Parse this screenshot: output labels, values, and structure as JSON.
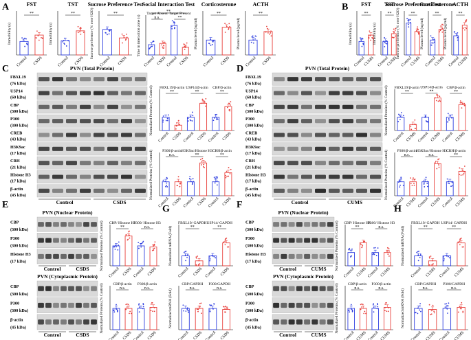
{
  "panel_letters": {
    "A": "A",
    "B": "B",
    "C": "C",
    "D": "D",
    "E": "E",
    "F": "F",
    "G": "G",
    "H": "H"
  },
  "groups": {
    "control": "Control",
    "csds": "CSDS",
    "cums": "CUMS"
  },
  "colors": {
    "control": "#2f3fe0",
    "stress": "#e8413c",
    "blot_bg": "#d9d9d9",
    "band": "#1a1a1a"
  },
  "sig": {
    "double": "**",
    "ns": "n.s.",
    "single": "*"
  },
  "blots": {
    "C_head": "PVN (Total Protein)",
    "D_head": "PVN (Total Protein)",
    "E_head": "PVN (Nuclear Protein)",
    "E2_head": "PVN (Cytoplasmic Protein)",
    "F_head": "PVN (Nuclear Protein)",
    "F2_head": "PVN (Cytoplasmic Protein)",
    "total_rows": [
      {
        "name": "FBXL19",
        "kda": "(76 kDa)"
      },
      {
        "name": "USP14",
        "kda": "(60 kDa)"
      },
      {
        "name": "CBP",
        "kda": "(300 kDa)"
      },
      {
        "name": "P300",
        "kda": "(300 kDa)"
      },
      {
        "name": "CREB",
        "kda": "(43 kDa)"
      },
      {
        "name": "H3K9ac",
        "kda": "(17 kDa)"
      },
      {
        "name": "CRH",
        "kda": "(21 kDa)"
      },
      {
        "name": "Histone H3",
        "kda": "(17 kDa)"
      },
      {
        "name": "β-actin",
        "kda": "(45 kDa)"
      }
    ],
    "nuc_rows": [
      {
        "name": "CBP",
        "kda": "(300 kDa)"
      },
      {
        "name": "P300",
        "kda": "(300 kDa)"
      },
      {
        "name": "Histone H3",
        "kda": "(17 kDa)"
      }
    ],
    "cyto_rows": [
      {
        "name": "CBP",
        "kda": "(300 kDa)"
      },
      {
        "name": "P300",
        "kda": "(300 kDa)"
      },
      {
        "name": "β-actin",
        "kda": "(45 kDa)"
      }
    ]
  },
  "chart_data": [
    {
      "type": "bar",
      "panel": "A",
      "title": "FST",
      "ylabel": "Immobility (s)",
      "ylim": [
        0,
        300
      ],
      "categories": [
        "Control",
        "CSDS"
      ],
      "values": [
        95,
        140
      ],
      "sig": "**"
    },
    {
      "type": "bar",
      "panel": "A",
      "title": "TST",
      "ylabel": "Immobility (s)",
      "ylim": [
        0,
        300
      ],
      "categories": [
        "Control",
        "CSDS"
      ],
      "values": [
        100,
        170
      ],
      "sig": "**"
    },
    {
      "type": "bar",
      "panel": "A",
      "title": "Sucrose Preference Test",
      "ylabel": "Sucrose preference (% over H2O)",
      "ylim": [
        0,
        100
      ],
      "categories": [
        "Control",
        "CSDS"
      ],
      "values": [
        60,
        40
      ],
      "sig": "**"
    },
    {
      "type": "bar",
      "panel": "A",
      "title": "Social Interaction Test",
      "ylabel": "Time in interaction zone (s)",
      "ylim": [
        0,
        150
      ],
      "categories": [
        "Control",
        "CSDS",
        "Control",
        "CSDS"
      ],
      "values": [
        40,
        45,
        115,
        30
      ],
      "annotations": [
        "Target Absent",
        "Target Present"
      ],
      "sig": [
        "n.s.",
        "**",
        "**"
      ]
    },
    {
      "type": "bar",
      "panel": "A",
      "title": "Corticosterone",
      "ylabel": "Plasma level (ng/ml)",
      "ylim": [
        0,
        100
      ],
      "categories": [
        "Control",
        "CSDS"
      ],
      "values": [
        35,
        65
      ],
      "sig": "**"
    },
    {
      "type": "bar",
      "panel": "A",
      "title": "ACTH",
      "ylabel": "Plasma level (pg/ml)",
      "ylim": [
        0,
        40
      ],
      "categories": [
        "Control",
        "CSDS"
      ],
      "values": [
        14,
        22
      ],
      "sig": "**"
    },
    {
      "type": "bar",
      "panel": "B",
      "title": "FST",
      "ylabel": "Immobility (s)",
      "ylim": [
        0,
        300
      ],
      "categories": [
        "Control",
        "CUMS"
      ],
      "values": [
        95,
        140
      ],
      "sig": "**"
    },
    {
      "type": "bar",
      "panel": "B",
      "title": "TST",
      "ylabel": "Immobility (s)",
      "ylim": [
        0,
        300
      ],
      "categories": [
        "Control",
        "CUMS"
      ],
      "values": [
        95,
        150
      ],
      "sig": "**"
    },
    {
      "type": "bar",
      "panel": "B",
      "title": "Sucrose Preference Test",
      "ylabel": "Sucrose preference (% over H2O)",
      "ylim": [
        0,
        100
      ],
      "categories": [
        "Control",
        "CUMS"
      ],
      "values": [
        75,
        55
      ],
      "sig": "**"
    },
    {
      "type": "bar",
      "panel": "B",
      "title": "Corticosterone",
      "ylabel": "Plasma level (ng/ml)",
      "ylim": [
        0,
        100
      ],
      "categories": [
        "Control",
        "CUMS"
      ],
      "values": [
        35,
        60
      ],
      "sig": "**"
    },
    {
      "type": "bar",
      "panel": "B",
      "title": "ACTH",
      "ylabel": "Plasma level (pg/ml)",
      "ylim": [
        0,
        40
      ],
      "categories": [
        "Control",
        "CUMS"
      ],
      "values": [
        18,
        28
      ],
      "sig": "**"
    },
    {
      "type": "bar",
      "panel": "C",
      "ylabel": "Normalized Proteins (% Control)",
      "ylim": [
        0,
        300
      ],
      "categories": [
        "Control",
        "CSDS",
        "Control",
        "CSDS",
        "Control",
        "CSDS"
      ],
      "values": [
        100,
        40,
        100,
        205,
        100,
        180
      ],
      "annotations": [
        "FBXL19/β-actin",
        "USP14/β-actin",
        "CBP/β-actin"
      ],
      "sig": [
        "**",
        "**",
        "**"
      ]
    },
    {
      "type": "bar",
      "panel": "C",
      "ylabel": "Normalized Proteins (% Control)",
      "ylim": [
        0,
        300
      ],
      "categories": [
        "Control",
        "CSDS",
        "Control",
        "CSDS",
        "Control",
        "CSDS"
      ],
      "values": [
        100,
        100,
        100,
        235,
        100,
        165
      ],
      "annotations": [
        "P300/β-actin",
        "H3K9ac/Histone H3",
        "CRH/β-actin"
      ],
      "sig": [
        "n.s.",
        "**",
        "**"
      ]
    },
    {
      "type": "bar",
      "panel": "D",
      "ylabel": "Normalized Proteins (% Control)",
      "ylim": [
        0,
        300
      ],
      "categories": [
        "Control",
        "CUMS",
        "Control",
        "CUMS",
        "Control",
        "CUMS"
      ],
      "values": [
        100,
        45,
        100,
        245,
        100,
        195
      ],
      "annotations": [
        "FBXL19/β-actin",
        "USP14/β-actin",
        "CBP/β-actin"
      ],
      "sig": [
        "**",
        "**",
        "**"
      ]
    },
    {
      "type": "bar",
      "panel": "D",
      "ylabel": "Normalized Proteins (% Control)",
      "ylim": [
        0,
        300
      ],
      "categories": [
        "Control",
        "CUMS",
        "Control",
        "CUMS",
        "Control",
        "CUMS"
      ],
      "values": [
        100,
        100,
        100,
        230,
        100,
        175
      ],
      "annotations": [
        "P300/β-actin",
        "H3K9ac/Histone H3",
        "CRH/β-actin"
      ],
      "sig": [
        "n.s.",
        "n.s.",
        "**"
      ]
    },
    {
      "type": "bar",
      "panel": "E",
      "ylabel": "Normalized Proteins (% Control)",
      "ylim": [
        0,
        200
      ],
      "categories": [
        "Control",
        "CSDS",
        "Control",
        "CSDS"
      ],
      "values": [
        100,
        150,
        100,
        95
      ],
      "annotations": [
        "CBP/ Histone H3",
        "P300/ Histone H3"
      ],
      "sig": [
        "**",
        "n.s."
      ]
    },
    {
      "type": "bar",
      "panel": "E",
      "ylabel": "Normalized Proteins (% Control)",
      "ylim": [
        0,
        200
      ],
      "categories": [
        "Control",
        "CSDS",
        "Control",
        "CSDS"
      ],
      "values": [
        100,
        100,
        100,
        105
      ],
      "annotations": [
        "CBP/β-actin",
        "P300/β-actin"
      ],
      "sig": [
        "n.s.",
        "n.s."
      ]
    },
    {
      "type": "bar",
      "panel": "G",
      "ylabel": "Normalized mRNA (Fold)",
      "ylim": [
        0,
        4
      ],
      "categories": [
        "Control",
        "CSDS",
        "Control",
        "CSDS"
      ],
      "values": [
        1,
        0.5,
        1,
        2.3
      ],
      "annotations": [
        "FBXL19/ GAPDH",
        "USP14/ GAPDH"
      ],
      "sig": [
        "**",
        "**"
      ]
    },
    {
      "type": "bar",
      "panel": "G",
      "ylabel": "Normalized mRNA (Fold)",
      "ylim": [
        0,
        2
      ],
      "categories": [
        "Control",
        "CSDS",
        "Control",
        "CSDS"
      ],
      "values": [
        1,
        1,
        1,
        0.95
      ],
      "annotations": [
        "CBP/GAPDH",
        "P300/GAPDH"
      ],
      "sig": [
        "n.s.",
        "n.s."
      ]
    },
    {
      "type": "bar",
      "panel": "F",
      "ylabel": "Normalized Proteins (% Control)",
      "ylim": [
        0,
        300
      ],
      "categories": [
        "Control",
        "CUMS",
        "Control",
        "CUMS"
      ],
      "values": [
        100,
        175,
        100,
        100
      ],
      "annotations": [
        "CBP/ Histone H3",
        "P300/ Histone H3"
      ],
      "sig": [
        "**",
        "n.s."
      ]
    },
    {
      "type": "bar",
      "panel": "F",
      "ylabel": "Normalized Proteins (% Control)",
      "ylim": [
        0,
        200
      ],
      "categories": [
        "Control",
        "CUMS",
        "Control",
        "CUMS"
      ],
      "values": [
        100,
        100,
        100,
        105
      ],
      "annotations": [
        "CBP/β-actin",
        "P300/β-actin"
      ],
      "sig": [
        "n.s.",
        "n.s."
      ]
    },
    {
      "type": "bar",
      "panel": "H",
      "ylabel": "Normalized mRNA (Fold)",
      "ylim": [
        0,
        4
      ],
      "categories": [
        "Control",
        "CUMS",
        "Control",
        "CUMS"
      ],
      "values": [
        1,
        0.5,
        1,
        2.3
      ],
      "annotations": [
        "FBXL19/ GAPDH",
        "USP14/ GAPDH"
      ],
      "sig": [
        "**",
        "**"
      ]
    },
    {
      "type": "bar",
      "panel": "H",
      "ylabel": "Normalized mRNA (Fold)",
      "ylim": [
        0,
        2
      ],
      "categories": [
        "Control",
        "CUMS",
        "Control",
        "CUMS"
      ],
      "values": [
        1,
        0.95,
        1,
        1.05
      ],
      "annotations": [
        "CBP/GAPDH",
        "P300/GAPDH"
      ],
      "sig": [
        "n.s.",
        "n.s."
      ]
    }
  ]
}
